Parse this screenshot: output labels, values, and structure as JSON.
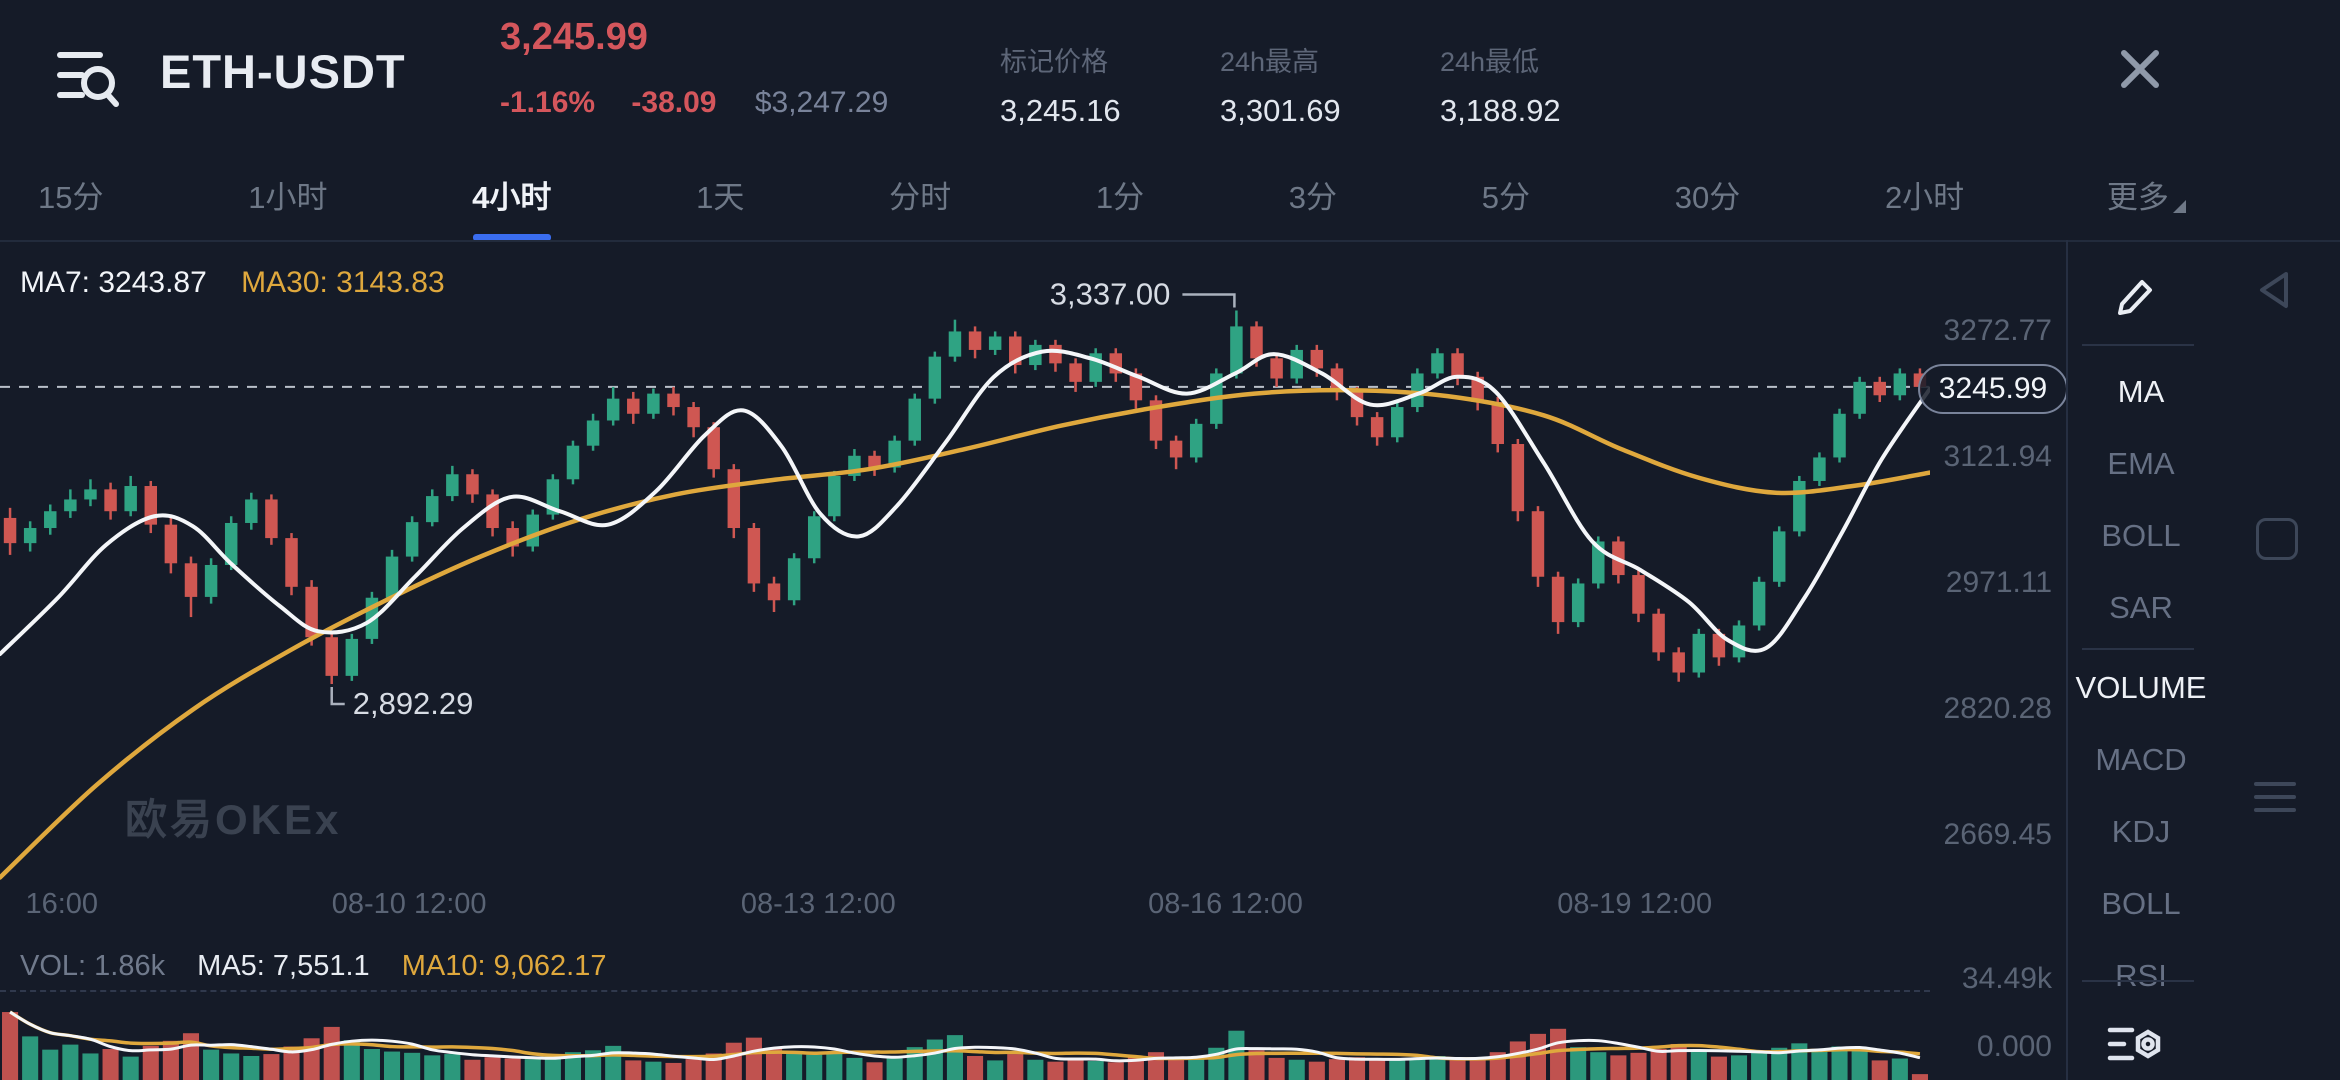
{
  "header": {
    "symbol": "ETH-USDT",
    "last_price": "3,245.99",
    "change_pct": "-1.16%",
    "change_abs": "-38.09",
    "usd_price": "$3,247.29",
    "stats": [
      {
        "label": "标记价格",
        "value": "3,245.16"
      },
      {
        "label": "24h最高",
        "value": "3,301.69"
      },
      {
        "label": "24h最低",
        "value": "3,188.92"
      }
    ]
  },
  "tabs": {
    "items": [
      "15分",
      "1小时",
      "4小时",
      "1天",
      "分时",
      "1分",
      "3分",
      "5分",
      "30分",
      "2小时"
    ],
    "active": "4小时",
    "more_label": "更多"
  },
  "legend": {
    "ma7": "MA7: 3243.87",
    "ma30": "MA30: 3143.83"
  },
  "vol_legend": {
    "vol": "VOL: 1.86k",
    "ma5": "MA5: 7,551.1",
    "ma10": "MA10: 9,062.17"
  },
  "watermark": "欧易OKEx",
  "price_axis": {
    "labels": [
      "3272.77",
      "3121.94",
      "2971.11",
      "2820.28",
      "2669.45"
    ],
    "values": [
      3272.77,
      3121.94,
      2971.11,
      2820.28,
      2669.45
    ],
    "current_label": "3245.99",
    "current_value": 3245.99
  },
  "vol_axis": {
    "max_label": "34.49k",
    "min_label": "0.000",
    "max_value": 34490
  },
  "sidebar": {
    "main_indicators": [
      "MA",
      "EMA",
      "BOLL",
      "SAR"
    ],
    "main_active": "MA",
    "sub_indicators": [
      "VOLUME",
      "MACD",
      "KDJ",
      "BOLL",
      "RSI"
    ],
    "sub_active": "VOLUME"
  },
  "colors": {
    "up": "#2fa383",
    "down": "#cf5752",
    "ma_fast": "#f4f6f9",
    "ma_slow": "#dfa83d",
    "accent": "#3a6df0",
    "red_text": "#d4565c",
    "dash": "#ccd2dc"
  },
  "chart_data": {
    "type": "candlestick",
    "title": "ETH-USDT 4小时",
    "interval": "4小时",
    "price_range": [
      2659,
      3403
    ],
    "last_price": 3245.99,
    "x_axis": {
      "labels": [
        "16:00",
        "08-10 12:00",
        "08-13 12:00",
        "08-16 12:00",
        "08-19 12:00"
      ],
      "fractions": [
        0.032,
        0.212,
        0.424,
        0.635,
        0.847
      ]
    },
    "annotations": {
      "high": {
        "label": "3,337.00",
        "value": 3337
      },
      "low": {
        "label": "2,892.29",
        "value": 2892.29
      }
    },
    "candles": [
      [
        3090,
        3102,
        3046,
        3060,
        21500
      ],
      [
        3060,
        3086,
        3050,
        3078,
        13800
      ],
      [
        3078,
        3106,
        3070,
        3098,
        9600
      ],
      [
        3098,
        3124,
        3090,
        3112,
        11200
      ],
      [
        3112,
        3136,
        3104,
        3124,
        8400
      ],
      [
        3124,
        3132,
        3088,
        3098,
        9800
      ],
      [
        3098,
        3140,
        3092,
        3128,
        7400
      ],
      [
        3128,
        3134,
        3072,
        3082,
        10800
      ],
      [
        3082,
        3090,
        3024,
        3036,
        12400
      ],
      [
        3036,
        3044,
        2972,
        2996,
        14800
      ],
      [
        2996,
        3042,
        2988,
        3034,
        9600
      ],
      [
        3034,
        3092,
        3028,
        3084,
        8400
      ],
      [
        3084,
        3120,
        3076,
        3112,
        7600
      ],
      [
        3112,
        3118,
        3058,
        3066,
        8200
      ],
      [
        3066,
        3072,
        2998,
        3008,
        10600
      ],
      [
        3008,
        3016,
        2938,
        2948,
        13200
      ],
      [
        2948,
        2956,
        2892.29,
        2902,
        16800
      ],
      [
        2902,
        2952,
        2896,
        2946,
        12600
      ],
      [
        2946,
        3002,
        2940,
        2995,
        9800
      ],
      [
        2995,
        3052,
        2990,
        3044,
        9000
      ],
      [
        3044,
        3092,
        3038,
        3085,
        8600
      ],
      [
        3085,
        3124,
        3080,
        3116,
        7800
      ],
      [
        3116,
        3152,
        3110,
        3142,
        8200
      ],
      [
        3142,
        3148,
        3108,
        3118,
        6400
      ],
      [
        3118,
        3124,
        3068,
        3078,
        7200
      ],
      [
        3078,
        3086,
        3044,
        3056,
        6800
      ],
      [
        3056,
        3100,
        3050,
        3094,
        6600
      ],
      [
        3094,
        3142,
        3088,
        3136,
        7400
      ],
      [
        3136,
        3182,
        3130,
        3176,
        8800
      ],
      [
        3176,
        3214,
        3170,
        3206,
        9400
      ],
      [
        3206,
        3246,
        3200,
        3232,
        10800
      ],
      [
        3232,
        3240,
        3202,
        3214,
        6200
      ],
      [
        3214,
        3244,
        3208,
        3238,
        5800
      ],
      [
        3238,
        3246,
        3212,
        3222,
        5400
      ],
      [
        3222,
        3228,
        3186,
        3198,
        6600
      ],
      [
        3198,
        3204,
        3138,
        3148,
        8400
      ],
      [
        3148,
        3154,
        3066,
        3078,
        11800
      ],
      [
        3078,
        3084,
        3002,
        3012,
        13400
      ],
      [
        3012,
        3020,
        2978,
        2992,
        10200
      ],
      [
        2992,
        3048,
        2986,
        3042,
        8800
      ],
      [
        3042,
        3098,
        3036,
        3092,
        8000
      ],
      [
        3092,
        3146,
        3086,
        3140,
        8600
      ],
      [
        3140,
        3172,
        3134,
        3164,
        7000
      ],
      [
        3164,
        3170,
        3140,
        3150,
        5600
      ],
      [
        3150,
        3188,
        3144,
        3182,
        6800
      ],
      [
        3182,
        3238,
        3176,
        3232,
        10400
      ],
      [
        3232,
        3288,
        3226,
        3282,
        12800
      ],
      [
        3282,
        3326,
        3276,
        3312,
        14200
      ],
      [
        3312,
        3318,
        3280,
        3290,
        7600
      ],
      [
        3290,
        3312,
        3284,
        3306,
        6200
      ],
      [
        3306,
        3312,
        3262,
        3272,
        8200
      ],
      [
        3272,
        3302,
        3266,
        3296,
        6400
      ],
      [
        3296,
        3302,
        3264,
        3274,
        5800
      ],
      [
        3274,
        3280,
        3240,
        3252,
        6600
      ],
      [
        3252,
        3292,
        3246,
        3286,
        6000
      ],
      [
        3286,
        3292,
        3252,
        3262,
        5600
      ],
      [
        3262,
        3268,
        3220,
        3230,
        7200
      ],
      [
        3230,
        3236,
        3172,
        3182,
        8800
      ],
      [
        3182,
        3188,
        3148,
        3162,
        7400
      ],
      [
        3162,
        3208,
        3156,
        3202,
        7000
      ],
      [
        3202,
        3268,
        3196,
        3262,
        10200
      ],
      [
        3262,
        3337,
        3256,
        3318,
        15600
      ],
      [
        3318,
        3324,
        3270,
        3280,
        9400
      ],
      [
        3280,
        3286,
        3246,
        3256,
        7000
      ],
      [
        3256,
        3296,
        3250,
        3290,
        6400
      ],
      [
        3290,
        3296,
        3258,
        3268,
        5800
      ],
      [
        3268,
        3274,
        3230,
        3240,
        6600
      ],
      [
        3240,
        3246,
        3200,
        3210,
        7200
      ],
      [
        3210,
        3216,
        3176,
        3186,
        6800
      ],
      [
        3186,
        3228,
        3180,
        3222,
        6200
      ],
      [
        3222,
        3268,
        3216,
        3262,
        7000
      ],
      [
        3262,
        3292,
        3256,
        3286,
        7600
      ],
      [
        3286,
        3292,
        3248,
        3258,
        6400
      ],
      [
        3258,
        3264,
        3218,
        3228,
        7000
      ],
      [
        3228,
        3234,
        3168,
        3178,
        8800
      ],
      [
        3178,
        3184,
        3086,
        3098,
        12200
      ],
      [
        3098,
        3104,
        3008,
        3020,
        14600
      ],
      [
        3020,
        3026,
        2952,
        2966,
        16200
      ],
      [
        2966,
        3018,
        2960,
        3012,
        10400
      ],
      [
        3012,
        3068,
        3006,
        3062,
        8800
      ],
      [
        3062,
        3068,
        3012,
        3022,
        7800
      ],
      [
        3022,
        3028,
        2966,
        2976,
        8600
      ],
      [
        2976,
        2982,
        2920,
        2930,
        9800
      ],
      [
        2930,
        2936,
        2895,
        2906,
        11400
      ],
      [
        2906,
        2958,
        2900,
        2952,
        9000
      ],
      [
        2952,
        2958,
        2914,
        2924,
        7400
      ],
      [
        2924,
        2968,
        2918,
        2962,
        7800
      ],
      [
        2962,
        3020,
        2956,
        3014,
        8800
      ],
      [
        3014,
        3080,
        3008,
        3074,
        10200
      ],
      [
        3074,
        3140,
        3068,
        3134,
        11600
      ],
      [
        3134,
        3168,
        3128,
        3162,
        9200
      ],
      [
        3162,
        3220,
        3156,
        3214,
        10600
      ],
      [
        3214,
        3258,
        3208,
        3252,
        9800
      ],
      [
        3252,
        3258,
        3228,
        3236,
        6200
      ],
      [
        3236,
        3268,
        3230,
        3262,
        6800
      ],
      [
        3262,
        3268,
        3238,
        3245.99,
        1860
      ]
    ],
    "ma7_points": [
      [
        0,
        2928
      ],
      [
        0.03,
        2995
      ],
      [
        0.055,
        3058
      ],
      [
        0.08,
        3092
      ],
      [
        0.1,
        3080
      ],
      [
        0.12,
        3035
      ],
      [
        0.145,
        2985
      ],
      [
        0.165,
        2955
      ],
      [
        0.19,
        2965
      ],
      [
        0.215,
        3020
      ],
      [
        0.24,
        3078
      ],
      [
        0.265,
        3115
      ],
      [
        0.29,
        3098
      ],
      [
        0.315,
        3082
      ],
      [
        0.34,
        3122
      ],
      [
        0.365,
        3188
      ],
      [
        0.385,
        3218
      ],
      [
        0.405,
        3175
      ],
      [
        0.425,
        3095
      ],
      [
        0.445,
        3068
      ],
      [
        0.465,
        3105
      ],
      [
        0.49,
        3180
      ],
      [
        0.515,
        3258
      ],
      [
        0.54,
        3288
      ],
      [
        0.565,
        3280
      ],
      [
        0.59,
        3258
      ],
      [
        0.615,
        3238
      ],
      [
        0.64,
        3262
      ],
      [
        0.66,
        3285
      ],
      [
        0.685,
        3262
      ],
      [
        0.71,
        3225
      ],
      [
        0.735,
        3238
      ],
      [
        0.755,
        3258
      ],
      [
        0.775,
        3240
      ],
      [
        0.8,
        3155
      ],
      [
        0.825,
        3062
      ],
      [
        0.85,
        3028
      ],
      [
        0.875,
        2990
      ],
      [
        0.895,
        2945
      ],
      [
        0.915,
        2935
      ],
      [
        0.935,
        2995
      ],
      [
        0.955,
        3075
      ],
      [
        0.975,
        3160
      ],
      [
        1,
        3244
      ]
    ],
    "ma30_points": [
      [
        0,
        2662
      ],
      [
        0.05,
        2772
      ],
      [
        0.1,
        2862
      ],
      [
        0.15,
        2932
      ],
      [
        0.2,
        2992
      ],
      [
        0.25,
        3045
      ],
      [
        0.3,
        3088
      ],
      [
        0.35,
        3118
      ],
      [
        0.4,
        3135
      ],
      [
        0.45,
        3148
      ],
      [
        0.5,
        3172
      ],
      [
        0.55,
        3200
      ],
      [
        0.6,
        3222
      ],
      [
        0.65,
        3238
      ],
      [
        0.7,
        3242
      ],
      [
        0.75,
        3235
      ],
      [
        0.8,
        3212
      ],
      [
        0.84,
        3172
      ],
      [
        0.88,
        3138
      ],
      [
        0.92,
        3120
      ],
      [
        0.96,
        3128
      ],
      [
        1,
        3144
      ]
    ]
  }
}
